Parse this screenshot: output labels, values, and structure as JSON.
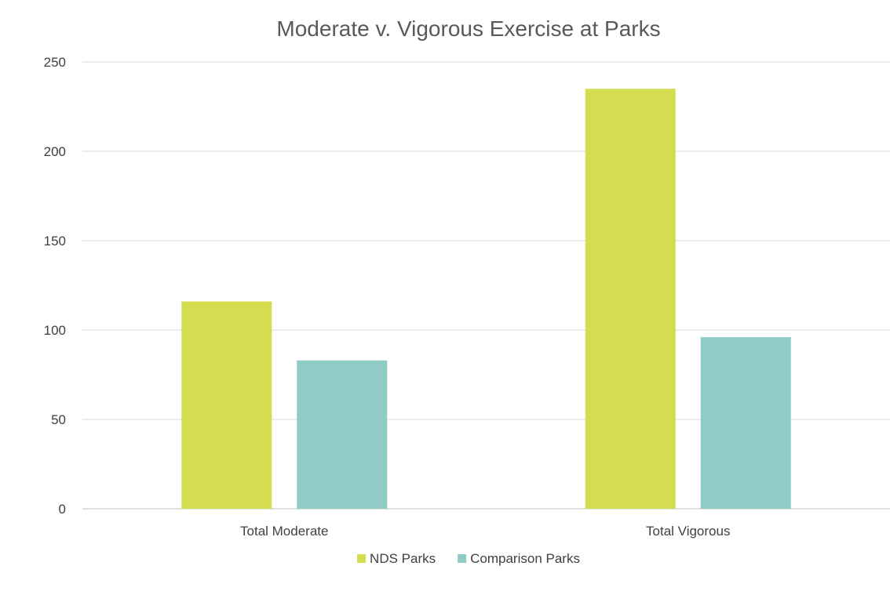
{
  "chart_data": {
    "type": "bar",
    "title": "Moderate v. Vigorous Exercise at Parks",
    "categories": [
      "Total Moderate",
      "Total Vigorous"
    ],
    "series": [
      {
        "name": "NDS Parks",
        "values": [
          116,
          235
        ],
        "color": "#d4dd4f"
      },
      {
        "name": "Comparison Parks",
        "values": [
          83,
          96
        ],
        "color": "#8fccc6"
      }
    ],
    "yticks": [
      "0",
      "50",
      "100",
      "150",
      "200",
      "250"
    ],
    "ylim": [
      0,
      250
    ],
    "grid": true,
    "legend_position": "bottom"
  }
}
